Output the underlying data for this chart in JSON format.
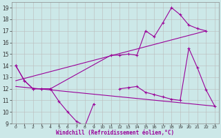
{
  "xlabel": "Windchill (Refroidissement éolien,°C)",
  "background_color": "#cce8e8",
  "line_color": "#990099",
  "grid_color": "#bbbbbb",
  "ylim": [
    9,
    19.5
  ],
  "xlim": [
    -0.5,
    23.5
  ],
  "yticks": [
    9,
    10,
    11,
    12,
    13,
    14,
    15,
    16,
    17,
    18,
    19
  ],
  "xticks": [
    0,
    1,
    2,
    3,
    4,
    5,
    6,
    7,
    8,
    9,
    10,
    11,
    12,
    13,
    14,
    15,
    16,
    17,
    18,
    19,
    20,
    21,
    22,
    23
  ],
  "series_a_x": [
    0,
    1,
    2,
    3,
    4,
    5,
    6,
    7,
    8,
    9
  ],
  "series_a_y": [
    14.0,
    12.7,
    12.0,
    12.0,
    12.0,
    10.9,
    10.0,
    9.2,
    8.8,
    10.7
  ],
  "series_b_x": [
    0,
    1,
    2,
    3,
    4,
    11,
    12,
    13,
    14,
    15,
    16,
    17,
    18,
    19,
    20,
    21,
    22
  ],
  "series_b_y": [
    14.0,
    12.7,
    12.0,
    12.0,
    12.0,
    14.9,
    14.9,
    15.0,
    14.9,
    17.0,
    16.5,
    17.7,
    19.0,
    18.4,
    17.5,
    17.2,
    17.0
  ],
  "trend1_x": [
    0,
    22
  ],
  "trend1_y": [
    12.7,
    17.0
  ],
  "trend2_x": [
    0,
    23
  ],
  "trend2_y": [
    12.2,
    10.5
  ],
  "series_c_x": [
    12,
    13,
    14,
    15,
    16,
    17,
    18,
    19,
    20,
    21,
    22,
    23
  ],
  "series_c_y": [
    12.0,
    12.1,
    12.2,
    11.7,
    11.5,
    11.3,
    11.1,
    11.0,
    15.5,
    13.8,
    11.9,
    10.5
  ]
}
